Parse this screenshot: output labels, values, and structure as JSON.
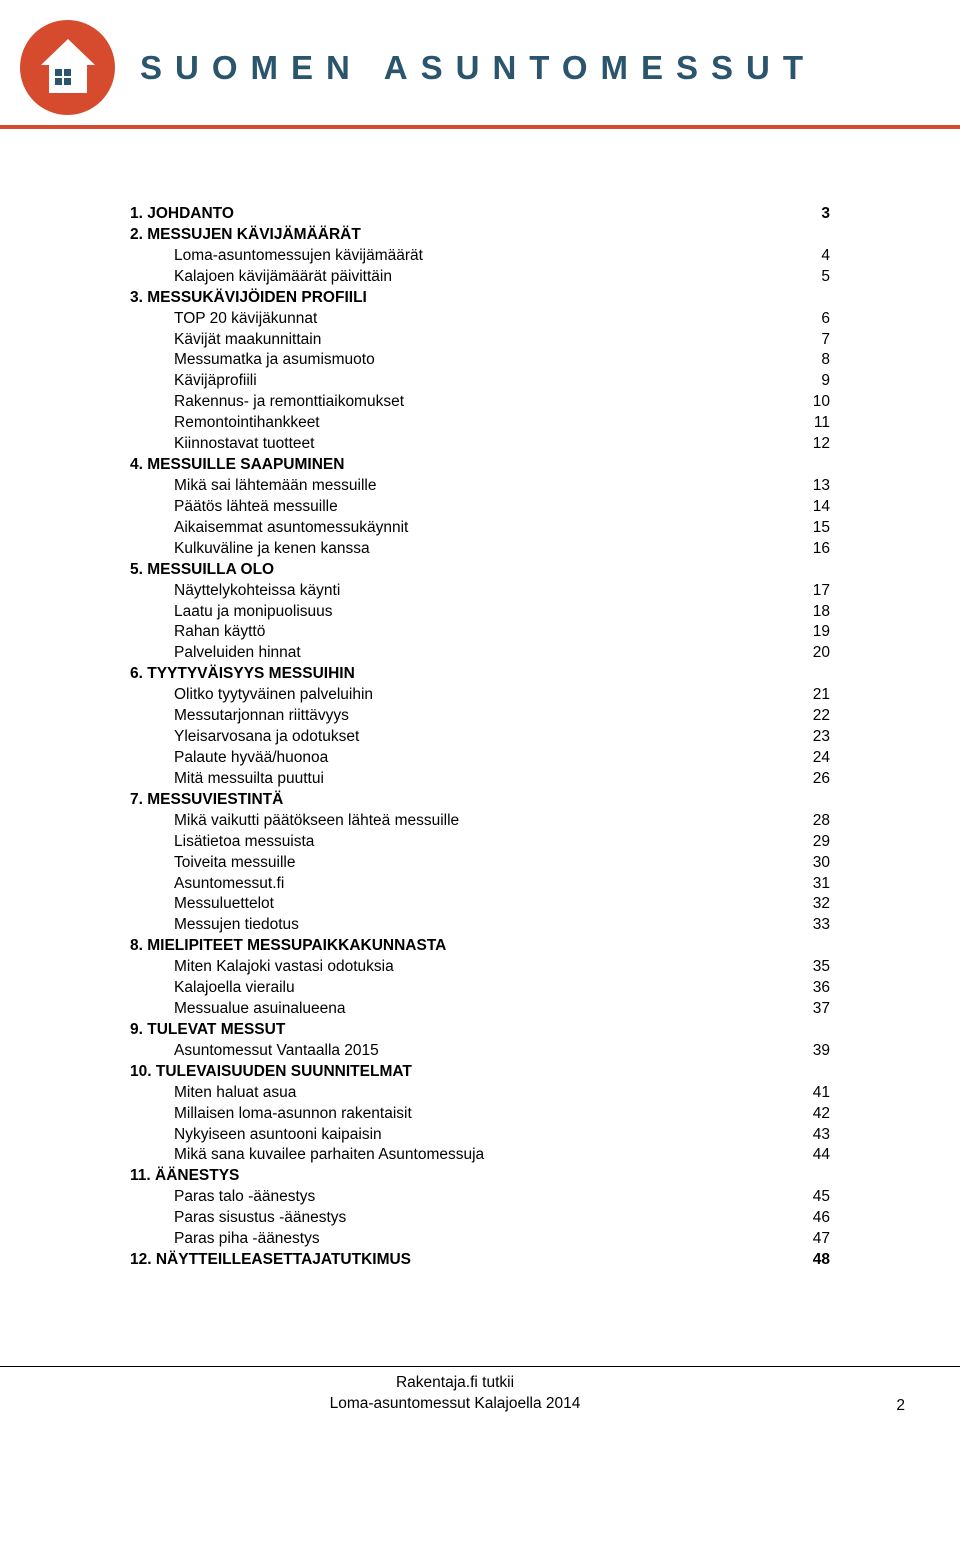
{
  "brand": {
    "title": "SUOMEN ASUNTOMESSUT",
    "logo_bg": "#d64a2e",
    "title_color": "#2a556d",
    "divider_color": "#d64a2e",
    "house_square_color": "#2a556d"
  },
  "toc": [
    {
      "heading": "1. JOHDANTO",
      "heading_page": "3",
      "items": []
    },
    {
      "heading": "2. MESSUJEN KÄVIJÄMÄÄRÄT",
      "items": [
        {
          "label": "Loma-asuntomessujen kävijämäärät",
          "page": "4"
        },
        {
          "label": "Kalajoen kävijämäärät päivittäin",
          "page": "5"
        }
      ]
    },
    {
      "heading": "3. MESSUKÄVIJÖIDEN PROFIILI",
      "items": [
        {
          "label": "TOP 20 kävijäkunnat",
          "page": "6"
        },
        {
          "label": "Kävijät maakunnittain",
          "page": "7"
        },
        {
          "label": "Messumatka ja asumismuoto",
          "page": "8"
        },
        {
          "label": "Kävijäprofiili",
          "page": "9"
        },
        {
          "label": "Rakennus- ja remonttiaikomukset",
          "page": "10"
        },
        {
          "label": "Remontointihankkeet",
          "page": "11"
        },
        {
          "label": "Kiinnostavat tuotteet",
          "page": "12"
        }
      ]
    },
    {
      "heading": "4. MESSUILLE SAAPUMINEN",
      "items": [
        {
          "label": "Mikä sai lähtemään messuille",
          "page": "13"
        },
        {
          "label": "Päätös lähteä messuille",
          "page": "14"
        },
        {
          "label": "Aikaisemmat asuntomessukäynnit",
          "page": "15"
        },
        {
          "label": "Kulkuväline ja kenen kanssa",
          "page": "16"
        }
      ]
    },
    {
      "heading": "5. MESSUILLA OLO",
      "items": [
        {
          "label": "Näyttelykohteissa käynti",
          "page": "17"
        },
        {
          "label": "Laatu ja monipuolisuus",
          "page": "18"
        },
        {
          "label": "Rahan käyttö",
          "page": "19"
        },
        {
          "label": "Palveluiden hinnat",
          "page": "20"
        }
      ]
    },
    {
      "heading": "6. TYYTYVÄISYYS MESSUIHIN",
      "items": [
        {
          "label": "Olitko tyytyväinen palveluihin",
          "page": "21"
        },
        {
          "label": "Messutarjonnan riittävyys",
          "page": "22"
        },
        {
          "label": "Yleisarvosana ja odotukset",
          "page": "23"
        },
        {
          "label": "Palaute hyvää/huonoa",
          "page": "24"
        },
        {
          "label": "Mitä messuilta puuttui",
          "page": "26"
        }
      ]
    },
    {
      "heading": "7. MESSUVIESTINTÄ",
      "items": [
        {
          "label": "Mikä vaikutti päätökseen lähteä messuille",
          "page": "28"
        },
        {
          "label": "Lisätietoa messuista",
          "page": "29"
        },
        {
          "label": "Toiveita messuille",
          "page": "30"
        },
        {
          "label": "Asuntomessut.fi",
          "page": "31"
        },
        {
          "label": "Messuluettelot",
          "page": "32"
        },
        {
          "label": "Messujen tiedotus",
          "page": "33"
        }
      ]
    },
    {
      "heading": "8. MIELIPITEET MESSUPAIKKAKUNNASTA",
      "items": [
        {
          "label": "Miten Kalajoki vastasi odotuksia",
          "page": "35"
        },
        {
          "label": "Kalajoella vierailu",
          "page": "36"
        },
        {
          "label": "Messualue asuinalueena",
          "page": "37"
        }
      ]
    },
    {
      "heading": "9. TULEVAT MESSUT",
      "items": [
        {
          "label": "Asuntomessut Vantaalla 2015",
          "page": "39"
        }
      ]
    },
    {
      "heading": "10. TULEVAISUUDEN SUUNNITELMAT",
      "items": [
        {
          "label": "Miten haluat asua",
          "page": "41"
        },
        {
          "label": "Millaisen loma-asunnon rakentaisit",
          "page": "42"
        },
        {
          "label": "Nykyiseen asuntooni kaipaisin",
          "page": "43"
        },
        {
          "label": "Mikä sana kuvailee parhaiten Asuntomessuja",
          "page": "44"
        }
      ]
    },
    {
      "heading": "11. ÄÄNESTYS",
      "items": [
        {
          "label": "Paras talo -äänestys",
          "page": "45"
        },
        {
          "label": "Paras sisustus -äänestys",
          "page": "46"
        },
        {
          "label": "Paras piha -äänestys",
          "page": "47"
        }
      ]
    },
    {
      "heading": "12. NÄYTTEILLEASETTAJATUTKIMUS",
      "heading_page": "48",
      "items": []
    }
  ],
  "footer": {
    "line1": "Rakentaja.fi tutkii",
    "line2": "Loma-asuntomessut Kalajoella 2014",
    "page": "2"
  }
}
